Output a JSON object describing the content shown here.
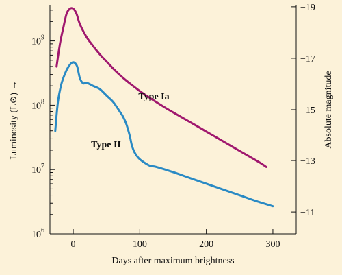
{
  "chart_data": {
    "type": "line",
    "xlabel": "Days after maximum brightness",
    "ylabel": "Luminosity (L⊙) →",
    "y2label": "Absolute magnitude",
    "xlim": [
      -35,
      335
    ],
    "ylim": [
      6,
      9.55
    ],
    "yscale": "log",
    "x_ticks": [
      {
        "value": 0,
        "label": "0"
      },
      {
        "value": 100,
        "label": "100"
      },
      {
        "value": 200,
        "label": "200"
      },
      {
        "value": 300,
        "label": "300"
      }
    ],
    "y_ticks": [
      {
        "value": 6,
        "base": "10",
        "exp": "6"
      },
      {
        "value": 7,
        "base": "10",
        "exp": "7"
      },
      {
        "value": 8,
        "base": "10",
        "exp": "8"
      },
      {
        "value": 9,
        "base": "10",
        "exp": "9"
      }
    ],
    "y2_ticks": [
      {
        "log_value": 9.53,
        "label": "−19"
      },
      {
        "log_value": 8.73,
        "label": "−17"
      },
      {
        "log_value": 7.93,
        "label": "−15"
      },
      {
        "log_value": 7.14,
        "label": "−13"
      },
      {
        "log_value": 6.34,
        "label": "−11"
      }
    ],
    "series": [
      {
        "name": "Type Ia",
        "color": "#a0186e",
        "x": [
          -25,
          -20,
          -15,
          -10,
          -5,
          0,
          5,
          10,
          20,
          30,
          40,
          50,
          60,
          70,
          80,
          90,
          100,
          120,
          140,
          160,
          180,
          200,
          220,
          240,
          260,
          280,
          290
        ],
        "y": [
          8.6,
          8.95,
          9.2,
          9.42,
          9.5,
          9.5,
          9.42,
          9.26,
          9.06,
          8.92,
          8.79,
          8.68,
          8.57,
          8.47,
          8.38,
          8.3,
          8.22,
          8.08,
          7.95,
          7.83,
          7.71,
          7.59,
          7.47,
          7.35,
          7.23,
          7.11,
          7.04
        ]
      },
      {
        "name": "Type II",
        "color": "#2a8ac4",
        "x": [
          -27,
          -23,
          -18,
          -12,
          -7,
          -2,
          2,
          6,
          10,
          15,
          20,
          30,
          40,
          50,
          60,
          70,
          75,
          80,
          85,
          88,
          92,
          98,
          105,
          115,
          125,
          150,
          175,
          200,
          225,
          250,
          275,
          300
        ],
        "y": [
          7.6,
          8.05,
          8.32,
          8.5,
          8.6,
          8.66,
          8.66,
          8.6,
          8.42,
          8.34,
          8.35,
          8.3,
          8.25,
          8.15,
          8.05,
          7.9,
          7.82,
          7.7,
          7.52,
          7.38,
          7.27,
          7.18,
          7.12,
          7.06,
          7.04,
          6.96,
          6.87,
          6.78,
          6.69,
          6.6,
          6.51,
          6.43
        ]
      }
    ]
  }
}
